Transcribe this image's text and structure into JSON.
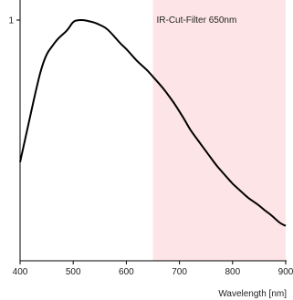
{
  "chart_data": {
    "type": "line",
    "title": "",
    "xlabel": "Wavelength [nm]",
    "ylabel": "",
    "xlim": [
      400,
      900
    ],
    "ylim": [
      0,
      1.0
    ],
    "x_ticks": [
      400,
      500,
      600,
      700,
      800,
      900
    ],
    "x_tick_labels": [
      "400",
      "500",
      "600",
      "700",
      "800",
      "900"
    ],
    "y_ticks": [
      1
    ],
    "y_tick_labels": [
      "1"
    ],
    "grid": false,
    "legend": null,
    "annotations": [
      {
        "text": "IR-Cut-Filter 650nm",
        "x_start": 650,
        "x_end": 900,
        "shade_color": "#fde4e6"
      }
    ],
    "series": [
      {
        "color": "#000000",
        "x": [
          400,
          410,
          420,
          430,
          440,
          450,
          460,
          470,
          480,
          490,
          500,
          510,
          520,
          530,
          540,
          550,
          560,
          570,
          580,
          590,
          600,
          610,
          620,
          630,
          640,
          650,
          660,
          670,
          680,
          690,
          700,
          710,
          720,
          730,
          740,
          750,
          760,
          770,
          780,
          790,
          800,
          810,
          820,
          830,
          840,
          850,
          860,
          870,
          880,
          890,
          900
        ],
        "y": [
          0.41,
          0.51,
          0.61,
          0.71,
          0.8,
          0.86,
          0.89,
          0.92,
          0.94,
          0.96,
          0.995,
          1.0,
          1.0,
          0.995,
          0.99,
          0.98,
          0.97,
          0.95,
          0.925,
          0.9,
          0.88,
          0.855,
          0.83,
          0.81,
          0.79,
          0.765,
          0.74,
          0.715,
          0.685,
          0.655,
          0.62,
          0.585,
          0.545,
          0.515,
          0.485,
          0.455,
          0.425,
          0.395,
          0.37,
          0.345,
          0.32,
          0.3,
          0.28,
          0.26,
          0.245,
          0.23,
          0.21,
          0.195,
          0.175,
          0.155,
          0.145
        ]
      }
    ]
  }
}
